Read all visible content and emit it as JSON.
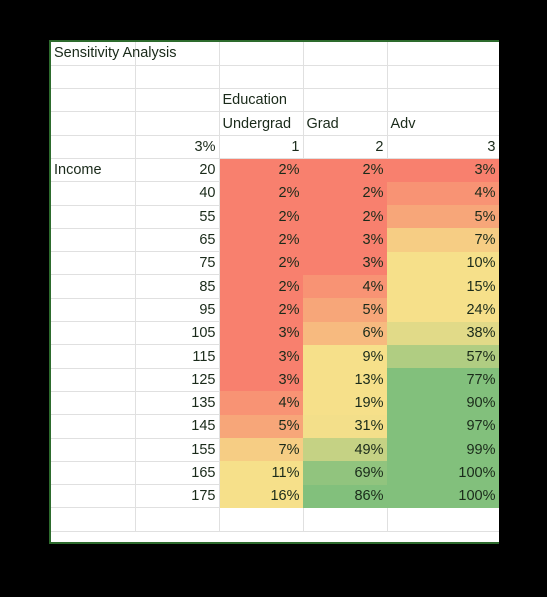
{
  "sheet": {
    "title": "Sensitivity Analysis",
    "dimension_label": "Education",
    "rate_label": "3%",
    "row_axis_label": "Income",
    "col_names": [
      "Undergrad",
      "Grad",
      "Adv"
    ],
    "col_codes": [
      "1",
      "2",
      "3"
    ],
    "rows": [
      {
        "income": "20",
        "values": [
          "2%",
          "2%",
          "3%"
        ]
      },
      {
        "income": "40",
        "values": [
          "2%",
          "2%",
          "4%"
        ]
      },
      {
        "income": "55",
        "values": [
          "2%",
          "2%",
          "5%"
        ]
      },
      {
        "income": "65",
        "values": [
          "2%",
          "3%",
          "7%"
        ]
      },
      {
        "income": "75",
        "values": [
          "2%",
          "3%",
          "10%"
        ]
      },
      {
        "income": "85",
        "values": [
          "2%",
          "4%",
          "15%"
        ]
      },
      {
        "income": "95",
        "values": [
          "2%",
          "5%",
          "24%"
        ]
      },
      {
        "income": "105",
        "values": [
          "3%",
          "6%",
          "38%"
        ]
      },
      {
        "income": "115",
        "values": [
          "3%",
          "9%",
          "57%"
        ]
      },
      {
        "income": "125",
        "values": [
          "3%",
          "13%",
          "77%"
        ]
      },
      {
        "income": "135",
        "values": [
          "4%",
          "19%",
          "90%"
        ]
      },
      {
        "income": "145",
        "values": [
          "5%",
          "31%",
          "97%"
        ]
      },
      {
        "income": "155",
        "values": [
          "7%",
          "49%",
          "99%"
        ]
      },
      {
        "income": "165",
        "values": [
          "11%",
          "69%",
          "100%"
        ]
      },
      {
        "income": "175",
        "values": [
          "16%",
          "86%",
          "100%"
        ]
      }
    ],
    "colors": {
      "low": "#f8806e",
      "mid": "#f6e08a",
      "high": "#82c07c",
      "text": "#1a2a1a",
      "border": "#2d6b2d"
    }
  }
}
